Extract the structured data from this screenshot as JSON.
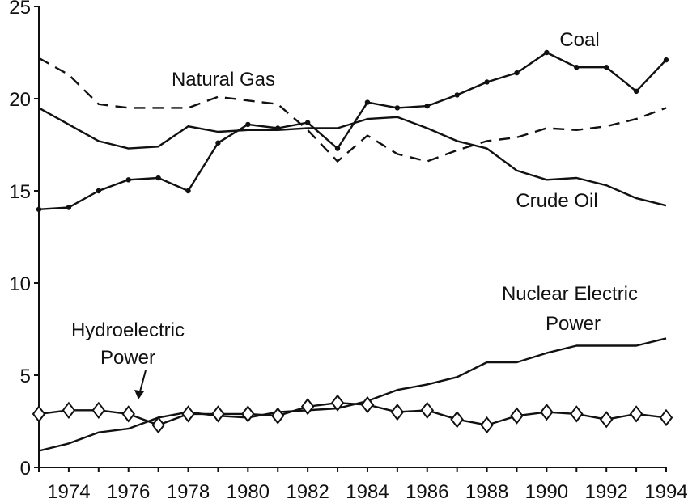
{
  "chart_data": {
    "type": "line",
    "title": "",
    "xlabel": "",
    "ylabel": "",
    "x": [
      1973,
      1974,
      1975,
      1976,
      1977,
      1978,
      1979,
      1980,
      1981,
      1982,
      1983,
      1984,
      1985,
      1986,
      1987,
      1988,
      1989,
      1990,
      1991,
      1992,
      1993,
      1994
    ],
    "xlim": [
      1973,
      1994
    ],
    "ylim": [
      0,
      25
    ],
    "xticks": [
      "1974",
      "1976",
      "1978",
      "1980",
      "1982",
      "1984",
      "1986",
      "1988",
      "1990",
      "1992",
      "1994"
    ],
    "yticks": [
      "0",
      "5",
      "10",
      "15",
      "20",
      "25"
    ],
    "grid": false,
    "series": [
      {
        "name": "Coal",
        "style": "solid-dots",
        "values": [
          14.0,
          14.1,
          15.0,
          15.6,
          15.7,
          15.0,
          17.6,
          18.6,
          18.4,
          18.7,
          17.3,
          19.8,
          19.5,
          19.6,
          20.2,
          20.9,
          21.4,
          22.5,
          21.7,
          21.7,
          20.4,
          22.1
        ]
      },
      {
        "name": "Natural Gas",
        "style": "dashed",
        "values": [
          22.2,
          21.3,
          19.7,
          19.5,
          19.5,
          19.5,
          20.1,
          19.9,
          19.7,
          18.3,
          16.6,
          18.0,
          17.0,
          16.6,
          17.2,
          17.7,
          17.9,
          18.4,
          18.3,
          18.5,
          18.9,
          19.5
        ]
      },
      {
        "name": "Crude Oil",
        "style": "solid",
        "values": [
          19.5,
          18.6,
          17.7,
          17.3,
          17.4,
          18.5,
          18.2,
          18.3,
          18.3,
          18.4,
          18.4,
          18.9,
          19.0,
          18.4,
          17.7,
          17.3,
          16.1,
          15.6,
          15.7,
          15.3,
          14.6,
          14.2
        ]
      },
      {
        "name": "Nuclear Electric Power",
        "style": "solid",
        "values": [
          0.9,
          1.3,
          1.9,
          2.1,
          2.7,
          3.0,
          2.8,
          2.7,
          3.0,
          3.1,
          3.2,
          3.6,
          4.2,
          4.5,
          4.9,
          5.7,
          5.7,
          6.2,
          6.6,
          6.6,
          6.6,
          7.0
        ]
      },
      {
        "name": "Hydroelectric Power",
        "style": "solid-diamonds",
        "values": [
          2.9,
          3.1,
          3.1,
          2.9,
          2.3,
          2.9,
          2.9,
          2.9,
          2.8,
          3.3,
          3.5,
          3.4,
          3.0,
          3.1,
          2.6,
          2.3,
          2.8,
          3.0,
          2.9,
          2.6,
          2.9,
          2.7
        ]
      }
    ],
    "annotations": [
      {
        "series": "Coal",
        "lines": [
          "Coal"
        ]
      },
      {
        "series": "Natural Gas",
        "lines": [
          "Natural Gas"
        ]
      },
      {
        "series": "Crude Oil",
        "lines": [
          "Crude Oil"
        ]
      },
      {
        "series": "Nuclear Electric Power",
        "lines": [
          "Nuclear Electric",
          "Power"
        ]
      },
      {
        "series": "Hydroelectric Power",
        "lines": [
          "Hydroelectric",
          "Power"
        ]
      }
    ]
  }
}
